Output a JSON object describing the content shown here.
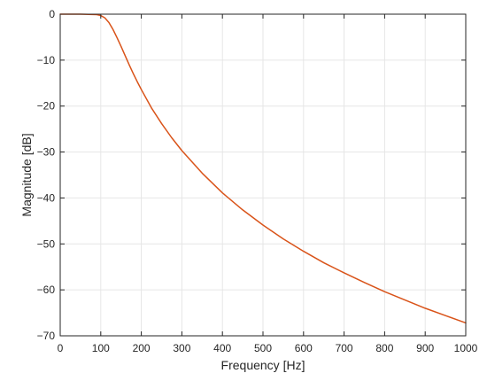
{
  "chart_data": {
    "type": "line",
    "title": "",
    "xlabel": "Frequency [Hz]",
    "ylabel": "Magnitude [dB]",
    "xlim": [
      0,
      1000
    ],
    "ylim": [
      -70,
      0
    ],
    "xticks": [
      0,
      100,
      200,
      300,
      400,
      500,
      600,
      700,
      800,
      900,
      1000
    ],
    "yticks": [
      0,
      -10,
      -20,
      -30,
      -40,
      -50,
      -60,
      -70
    ],
    "xtick_labels": [
      "0",
      "100",
      "200",
      "300",
      "400",
      "500",
      "600",
      "700",
      "800",
      "900",
      "1000"
    ],
    "ytick_labels": [
      "0",
      "−10",
      "−20",
      "−30",
      "−40",
      "−50",
      "−60",
      "−70"
    ],
    "grid": true,
    "series": [
      {
        "color": "#D95319",
        "x": [
          0,
          50,
          90,
          100,
          110,
          120,
          130,
          140,
          150,
          160,
          170,
          180,
          190,
          200,
          225,
          250,
          275,
          300,
          350,
          400,
          450,
          500,
          550,
          600,
          650,
          700,
          750,
          800,
          850,
          900,
          950,
          1000
        ],
        "y": [
          0,
          0,
          -0.1,
          -0.3,
          -0.8,
          -1.8,
          -3.3,
          -5.1,
          -7.0,
          -9.0,
          -11.0,
          -12.9,
          -14.7,
          -16.4,
          -20.4,
          -23.8,
          -26.9,
          -29.7,
          -34.6,
          -38.9,
          -42.6,
          -45.9,
          -48.9,
          -51.6,
          -54.1,
          -56.3,
          -58.4,
          -60.4,
          -62.2,
          -64.0,
          -65.6,
          -67.2
        ]
      }
    ]
  }
}
